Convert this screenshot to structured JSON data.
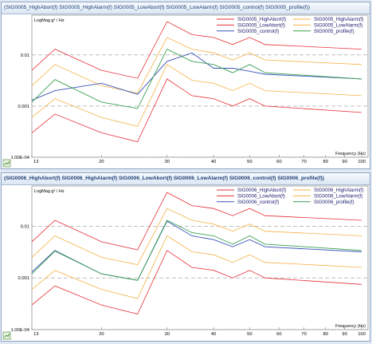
{
  "chart_data": [
    {
      "type": "line",
      "title": "(SIG0005_HighAbort(f) SIG0005_HighAlarm(f) SIG0005_LowAbort(f) SIG0005_LowAlarm(f) SIG0005_control(f) SIG0005_profile(f))",
      "ylabel": "LogMag g² / Hz",
      "xlabel": "Frequency (Hz)",
      "x_scale": "log",
      "y_scale": "log",
      "xlim": [
        13,
        104
      ],
      "ylim": [
        0.0001,
        0.06
      ],
      "x_ticks": [
        13,
        20,
        30,
        40,
        50,
        60,
        70,
        80,
        90,
        100
      ],
      "y_ticks": [
        {
          "value": 0.01,
          "label": "0.01"
        },
        {
          "value": 0.001,
          "label": "0.001"
        },
        {
          "value": 0.0001,
          "label": "1.00E-04"
        }
      ],
      "x": [
        13,
        15,
        20,
        25,
        30,
        35,
        40,
        45,
        50,
        55,
        100
      ],
      "series": [
        {
          "name": "SIG0005_HighAbort(f)",
          "color": "#e8303a",
          "values": [
            0.005,
            0.013,
            0.005,
            0.0035,
            0.045,
            0.025,
            0.022,
            0.016,
            0.022,
            0.016,
            0.013
          ]
        },
        {
          "name": "SIG0005_HighAlarm(f)",
          "color": "#f5b247",
          "values": [
            0.0025,
            0.0065,
            0.0025,
            0.0018,
            0.022,
            0.013,
            0.011,
            0.008,
            0.011,
            0.008,
            0.0065
          ]
        },
        {
          "name": "SIG0005_LowAbort(f)",
          "color": "#e8303a",
          "values": [
            0.0003,
            0.0007,
            0.0003,
            0.0002,
            0.0034,
            0.0016,
            0.0014,
            0.001,
            0.0014,
            0.001,
            0.00075
          ]
        },
        {
          "name": "SIG0005_LowAlarm(f)",
          "color": "#f5b247",
          "values": [
            0.0006,
            0.0014,
            0.0006,
            0.0004,
            0.0065,
            0.0032,
            0.0028,
            0.002,
            0.0028,
            0.002,
            0.0016
          ]
        },
        {
          "name": "SIG0005_control(f)",
          "color": "#3a54b8",
          "values": [
            0.0013,
            0.002,
            0.0028,
            0.0017,
            0.0075,
            0.011,
            0.0055,
            0.0055,
            0.0048,
            0.0042,
            0.0034
          ]
        },
        {
          "name": "SIG0005_profile(f)",
          "color": "#3aa050",
          "values": [
            0.0012,
            0.0033,
            0.0012,
            0.0009,
            0.013,
            0.0075,
            0.0065,
            0.0045,
            0.0065,
            0.0045,
            0.0034
          ]
        }
      ],
      "legend_position": "top-right",
      "grid": "dashed horizontal at decades"
    },
    {
      "type": "line",
      "title": "(SIG0006_HighAbort(f) SIG0006_HighAlarm(f) SIG0006_LowAbort(f) SIG0006_LowAlarm(f) SIG0006_control(f) SIG0006_profile(f))",
      "ylabel": "LogMag g² / Hz",
      "xlabel": "Frequency (Hz)",
      "x_scale": "log",
      "y_scale": "log",
      "xlim": [
        13,
        104
      ],
      "ylim": [
        0.0001,
        0.06
      ],
      "x_ticks": [
        13,
        20,
        30,
        40,
        50,
        60,
        70,
        80,
        90,
        100
      ],
      "y_ticks": [
        {
          "value": 0.01,
          "label": "0.01"
        },
        {
          "value": 0.001,
          "label": "0.001"
        },
        {
          "value": 0.0001,
          "label": "1.00E-04"
        }
      ],
      "x": [
        13,
        15,
        20,
        25,
        30,
        35,
        40,
        45,
        50,
        55,
        100
      ],
      "series": [
        {
          "name": "SIG0006_HighAbort(f)",
          "color": "#e8303a",
          "values": [
            0.005,
            0.013,
            0.005,
            0.0035,
            0.045,
            0.025,
            0.022,
            0.016,
            0.022,
            0.016,
            0.013
          ]
        },
        {
          "name": "SIG0006_HighAlarm(f)",
          "color": "#f5b247",
          "values": [
            0.0025,
            0.0065,
            0.0025,
            0.0018,
            0.022,
            0.013,
            0.011,
            0.008,
            0.011,
            0.008,
            0.0065
          ]
        },
        {
          "name": "SIG0006_LowAbort(f)",
          "color": "#e8303a",
          "values": [
            0.0003,
            0.0007,
            0.0003,
            0.0002,
            0.0034,
            0.0016,
            0.0014,
            0.001,
            0.0014,
            0.001,
            0.00075
          ]
        },
        {
          "name": "SIG0006_LowAlarm(f)",
          "color": "#f5b247",
          "values": [
            0.0006,
            0.0014,
            0.0006,
            0.0004,
            0.0065,
            0.0032,
            0.0028,
            0.002,
            0.0028,
            0.002,
            0.0016
          ]
        },
        {
          "name": "SIG0006_control(f)",
          "color": "#3a54b8",
          "values": [
            0.0013,
            0.0034,
            0.0012,
            0.0009,
            0.0125,
            0.0065,
            0.0055,
            0.004,
            0.0055,
            0.004,
            0.0032
          ]
        },
        {
          "name": "SIG0006_profile(f)",
          "color": "#3aa050",
          "values": [
            0.0012,
            0.0033,
            0.0012,
            0.0009,
            0.013,
            0.0075,
            0.0065,
            0.0045,
            0.0065,
            0.0045,
            0.0034
          ]
        }
      ],
      "legend_position": "top-right",
      "grid": "dashed horizontal at decades"
    }
  ],
  "panels": [
    {
      "title_main": "(SIG0005_HighAbort(f) SIG0005_HighAlarm(f) SIG0005_LowAbort(f) SIG0005_LowAlarm(f) SIG0005_control(f) SIG0005_profile(f))",
      "bold": false
    },
    {
      "title_main": "(SIG0006_HighAbort(f) SIG0006_HighAlarm(f) SIG0006_LowAbort(f) SIG0006_LowAlarm(f) SIG0006_control(f) SIG0006_profile(f))",
      "bold": true
    }
  ]
}
